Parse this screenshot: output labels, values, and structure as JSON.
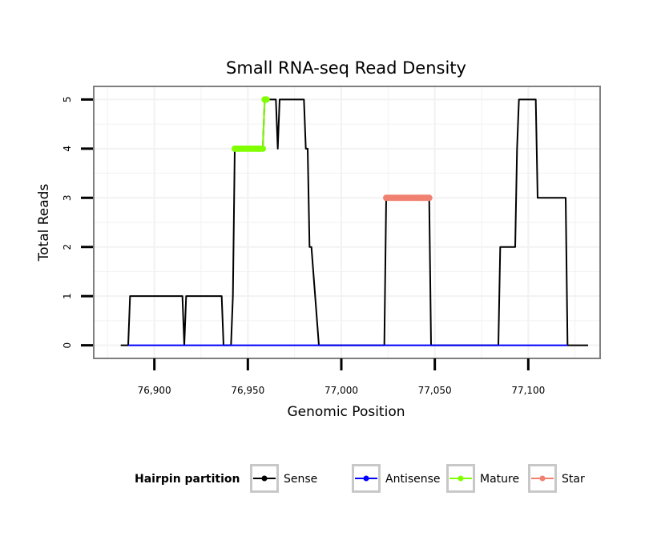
{
  "chart_data": {
    "type": "line",
    "title": "Small RNA-seq Read Density",
    "xlabel": "Genomic Position",
    "ylabel": "Total Reads",
    "xlim": [
      76868,
      77138
    ],
    "ylim": [
      -0.25,
      5.25
    ],
    "x_ticks": [
      76900,
      76950,
      77000,
      77050,
      77100
    ],
    "x_tick_labels": [
      "76,900",
      "76,950",
      "77,000",
      "77,050",
      "77,100"
    ],
    "y_ticks": [
      0,
      1,
      2,
      3,
      4,
      5
    ],
    "y_tick_labels": [
      "0",
      "1",
      "2",
      "3",
      "4",
      "5"
    ],
    "legend_title": "Hairpin partition",
    "legend_position": "bottom",
    "series": [
      {
        "name": "Sense",
        "color": "#000000",
        "x": [
          76882,
          76886,
          76887,
          76914,
          76915,
          76916,
          76917,
          76935,
          76936,
          76937,
          76941,
          76942,
          76943,
          76957,
          76958,
          76959,
          76964,
          76965,
          76966,
          76967,
          76980,
          76981,
          76982,
          76983,
          76984,
          76988,
          77023,
          77024,
          77047,
          77048,
          77084,
          77085,
          77086,
          77093,
          77094,
          77095,
          77104,
          77105,
          77106,
          77120,
          77121,
          77132
        ],
        "y": [
          0,
          0,
          1,
          1,
          1,
          0,
          1,
          1,
          1,
          0,
          0,
          1,
          4,
          4,
          4,
          5,
          5,
          5,
          4,
          5,
          5,
          4,
          4,
          2,
          2,
          0,
          0,
          3,
          3,
          0,
          0,
          2,
          2,
          2,
          4,
          5,
          5,
          3,
          3,
          3,
          0,
          0
        ]
      },
      {
        "name": "Antisense",
        "color": "#0000ff",
        "x": [
          76886,
          77121
        ],
        "y": [
          0,
          0
        ]
      },
      {
        "name": "Mature",
        "color": "#7fff00",
        "x": [
          76943,
          76944,
          76945,
          76946,
          76947,
          76948,
          76949,
          76950,
          76951,
          76952,
          76953,
          76954,
          76955,
          76956,
          76957,
          76958,
          76959,
          76960
        ],
        "y": [
          4,
          4,
          4,
          4,
          4,
          4,
          4,
          4,
          4,
          4,
          4,
          4,
          4,
          4,
          4,
          4,
          5,
          5
        ]
      },
      {
        "name": "Star",
        "color": "#f08070",
        "x": [
          77024,
          77025,
          77026,
          77027,
          77028,
          77029,
          77030,
          77031,
          77032,
          77033,
          77034,
          77035,
          77036,
          77037,
          77038,
          77039,
          77040,
          77041,
          77042,
          77043,
          77044,
          77045,
          77046,
          77047
        ],
        "y": [
          3,
          3,
          3,
          3,
          3,
          3,
          3,
          3,
          3,
          3,
          3,
          3,
          3,
          3,
          3,
          3,
          3,
          3,
          3,
          3,
          3,
          3,
          3,
          3
        ]
      }
    ]
  }
}
